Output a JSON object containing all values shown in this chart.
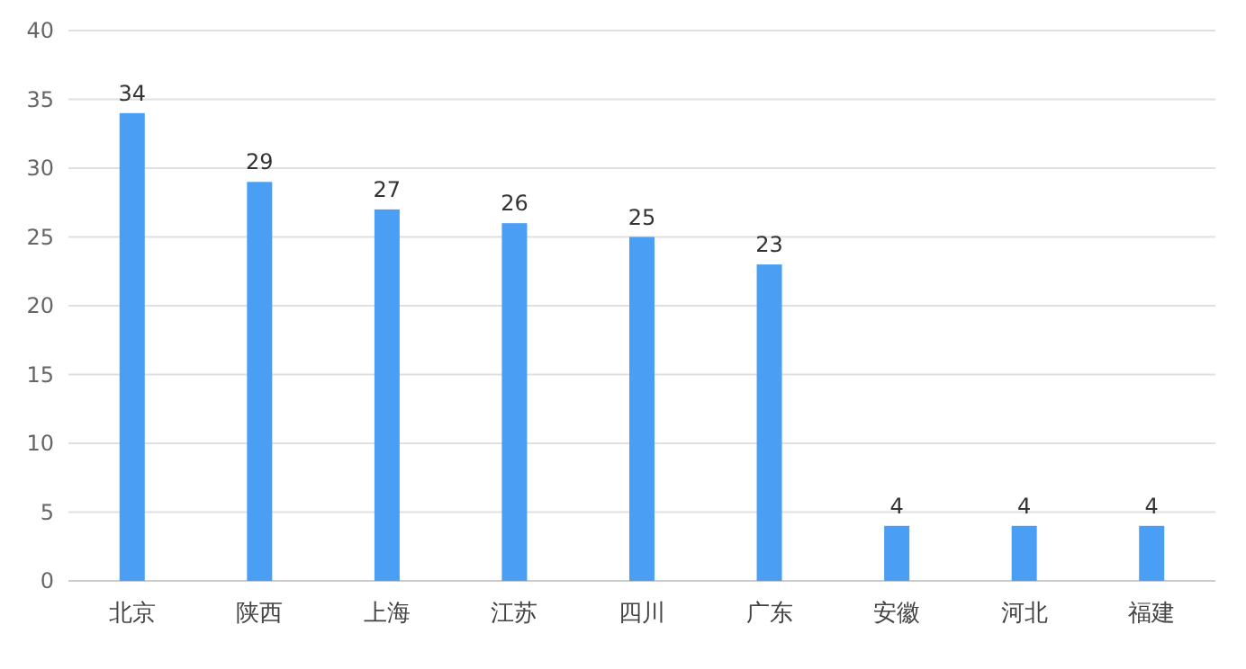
{
  "chart_data": {
    "type": "bar",
    "categories": [
      "北京",
      "陕西",
      "上海",
      "江苏",
      "四川",
      "广东",
      "安徽",
      "河北",
      "福建"
    ],
    "values": [
      34,
      29,
      27,
      26,
      25,
      23,
      4,
      4,
      4
    ],
    "color": "#4a9ff5",
    "ylim": [
      0,
      40
    ],
    "yticks": [
      0,
      5,
      10,
      15,
      20,
      25,
      30,
      35,
      40
    ],
    "grid": "y",
    "data_labels": true
  }
}
